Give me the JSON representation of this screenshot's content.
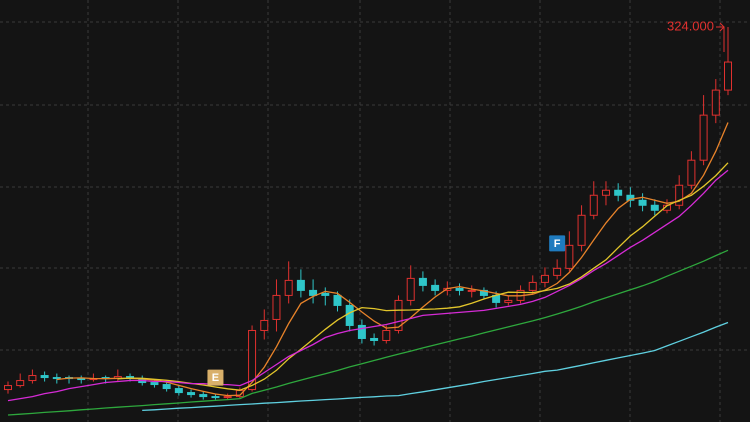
{
  "chart_data": {
    "type": "candlestick",
    "up_color": "#e0312f",
    "down_color": "#2fc6c9",
    "max_label": "324.000",
    "max_label_color": "#e0312f",
    "candles": [
      [
        143,
        147,
        141,
        145
      ],
      [
        145,
        151,
        144,
        147.5
      ],
      [
        147.5,
        153,
        146,
        150
      ],
      [
        150,
        152,
        147,
        149
      ],
      [
        149,
        151,
        146,
        148.5
      ],
      [
        149,
        150,
        146,
        148.5
      ],
      [
        148.5,
        150,
        146,
        148
      ],
      [
        148,
        151,
        147,
        148.5
      ],
      [
        149,
        150,
        146,
        148.5
      ],
      [
        148.5,
        153,
        147,
        149.5
      ],
      [
        149.5,
        151,
        147,
        148.5
      ],
      [
        148.5,
        150,
        145,
        146.5
      ],
      [
        146.5,
        148,
        144,
        145.5
      ],
      [
        145.5,
        147,
        142,
        143.5
      ],
      [
        143.5,
        145,
        140,
        141.5
      ],
      [
        141.5,
        143,
        139,
        140.5
      ],
      [
        140.5,
        142,
        138,
        139.5
      ],
      [
        139.5,
        141,
        138,
        139
      ],
      [
        139,
        141,
        138,
        139.5
      ],
      [
        139.5,
        144,
        138.5,
        142.5
      ],
      [
        143,
        175,
        142,
        172.5
      ],
      [
        172.5,
        183,
        168,
        177.5
      ],
      [
        178,
        198,
        172,
        190
      ],
      [
        190,
        207,
        186,
        197.5
      ],
      [
        197.5,
        203,
        189,
        192.5
      ],
      [
        192.5,
        198,
        186,
        190
      ],
      [
        191,
        194,
        185,
        190
      ],
      [
        190,
        192,
        182,
        185
      ],
      [
        185,
        188,
        172,
        175
      ],
      [
        175,
        178,
        166,
        168.5
      ],
      [
        168.5,
        171,
        165,
        167.5
      ],
      [
        167.5,
        175,
        166,
        172.5
      ],
      [
        172.5,
        190,
        171,
        187.5
      ],
      [
        187.5,
        205,
        185,
        198.5
      ],
      [
        198.5,
        202,
        192,
        195
      ],
      [
        195,
        198,
        190,
        192.5
      ],
      [
        192.5,
        197,
        190,
        193.5
      ],
      [
        193.5,
        196,
        190,
        192.5
      ],
      [
        192,
        195,
        189,
        192.5
      ],
      [
        192.5,
        194,
        188,
        190
      ],
      [
        190,
        192,
        184,
        186.5
      ],
      [
        186.5,
        190,
        185,
        187.5
      ],
      [
        187.5,
        195,
        186,
        192.5
      ],
      [
        192.5,
        200,
        191,
        196.5
      ],
      [
        196.5,
        204,
        194,
        200
      ],
      [
        200,
        208,
        198,
        203.5
      ],
      [
        203.5,
        222,
        202,
        215
      ],
      [
        215,
        235,
        212,
        230
      ],
      [
        230,
        247,
        228,
        240
      ],
      [
        240,
        247,
        235,
        242.5
      ],
      [
        242.5,
        246,
        237,
        240
      ],
      [
        240,
        244,
        234,
        237.5
      ],
      [
        237.5,
        241,
        232,
        235
      ],
      [
        235,
        238,
        230,
        232.5
      ],
      [
        232.5,
        238,
        231,
        235
      ],
      [
        235,
        250,
        233,
        245
      ],
      [
        245,
        262,
        243,
        257.5
      ],
      [
        257.5,
        290,
        255,
        280
      ],
      [
        280,
        298,
        276,
        292.5
      ],
      [
        292.5,
        324,
        290,
        306.5
      ]
    ],
    "events": [
      null,
      null,
      null,
      null,
      null,
      null,
      null,
      null,
      null,
      null,
      null,
      null,
      null,
      null,
      null,
      null,
      null,
      "E",
      null,
      null,
      null,
      null,
      null,
      null,
      null,
      null,
      null,
      null,
      null,
      null,
      null,
      null,
      null,
      null,
      null,
      null,
      null,
      null,
      null,
      null,
      null,
      null,
      null,
      null,
      null,
      "F",
      null,
      null,
      null,
      null,
      null,
      null,
      null,
      null,
      null,
      null,
      null,
      null,
      null,
      null
    ],
    "event_colors": {
      "E": "#d9b06a",
      "F": "#1f7bbf"
    },
    "series": [
      {
        "color": "#e8832a",
        "values": [
          null,
          null,
          null,
          null,
          148,
          148.7,
          148.8,
          148.5,
          148.4,
          148.6,
          148.6,
          148.3,
          147.7,
          146.7,
          145.1,
          143.5,
          142.1,
          140.8,
          140,
          140.2,
          146.6,
          154.2,
          164.4,
          176,
          186,
          189.5,
          192,
          191,
          186.5,
          181.7,
          177.2,
          173.7,
          174.2,
          178.9,
          184.2,
          189.2,
          193.4,
          194.4,
          193.2,
          192.2,
          191,
          189.8,
          189.8,
          190.6,
          192.6,
          196,
          201.5,
          209,
          217.7,
          226.2,
          233.5,
          238,
          239,
          237.5,
          236,
          237,
          241,
          250,
          262,
          276.3
        ]
      },
      {
        "color": "#e3c62b",
        "values": [
          null,
          null,
          null,
          null,
          null,
          null,
          null,
          null,
          null,
          148.3,
          148.7,
          148.6,
          148.1,
          147.6,
          146.9,
          146.1,
          145.3,
          144.3,
          143.4,
          142.7,
          145.1,
          148.2,
          152.6,
          158.4,
          163.1,
          168.1,
          173.1,
          177.7,
          181.3,
          183.9,
          183.4,
          182.4,
          182.6,
          182.7,
          183,
          183.2,
          183.6,
          184.3,
          186.1,
          188.2,
          190.1,
          191.6,
          191.5,
          191.4,
          192.4,
          193.5,
          195.7,
          199.3,
          203.6,
          207.8,
          213.8,
          219.7,
          224.3,
          229.6,
          234.8,
          237.5,
          240,
          244.5,
          249.8,
          256.2
        ]
      },
      {
        "color": "#d62bd6",
        "values": [
          137.5,
          138.5,
          139.5,
          141,
          142,
          143.5,
          144.5,
          145.5,
          146.5,
          147,
          147.5,
          147.5,
          147,
          147,
          146.5,
          146,
          146,
          145.5,
          145.5,
          145,
          147.5,
          151.5,
          155.5,
          159.5,
          162.5,
          165.5,
          169,
          171,
          172.5,
          173.5,
          174.5,
          175.5,
          177,
          178.5,
          180,
          180.5,
          181,
          181.5,
          182,
          182.5,
          183.5,
          184.5,
          185.5,
          187,
          189,
          192,
          195,
          198.5,
          202.5,
          206,
          210,
          214,
          217.5,
          221.5,
          225.5,
          229.5,
          235,
          241,
          247.5,
          252.5
        ]
      },
      {
        "color": "#2ea83d",
        "values": [
          130.3,
          130.7,
          131.1,
          131.6,
          132,
          132.4,
          132.9,
          133.3,
          133.8,
          134.2,
          134.6,
          135,
          135.5,
          135.9,
          136.3,
          136.8,
          137.2,
          137.6,
          138,
          138.5,
          141.1,
          142.7,
          144.3,
          146.1,
          147.7,
          149.3,
          150.9,
          152.5,
          154.3,
          155.9,
          157.5,
          159.1,
          160.7,
          162.2,
          163.8,
          165.3,
          166.8,
          168.3,
          169.7,
          171.3,
          172.8,
          174.3,
          175.8,
          177.3,
          178.9,
          180.7,
          182.6,
          184.6,
          186.8,
          188.8,
          190.8,
          192.8,
          194.8,
          197,
          199.6,
          202.1,
          204.6,
          207.1,
          209.9,
          212.5
        ]
      },
      {
        "color": "#5fd0e0",
        "values": [
          null,
          null,
          null,
          null,
          null,
          null,
          null,
          null,
          null,
          null,
          null,
          132.6,
          132.9,
          133.3,
          133.7,
          134,
          134.4,
          134.7,
          135.1,
          135.5,
          135.8,
          136.2,
          136.5,
          136.9,
          137.3,
          137.6,
          138,
          138.3,
          138.7,
          139.1,
          139.4,
          139.8,
          140,
          141,
          141.9,
          142.9,
          143.9,
          144.9,
          145.9,
          147,
          148,
          149,
          150,
          151,
          152.1,
          152.7,
          153.9,
          155.1,
          156.4,
          157.6,
          158.8,
          160,
          161.2,
          162.5,
          164.8,
          167.1,
          169.4,
          171.7,
          174.2,
          176.5
        ]
      }
    ]
  }
}
